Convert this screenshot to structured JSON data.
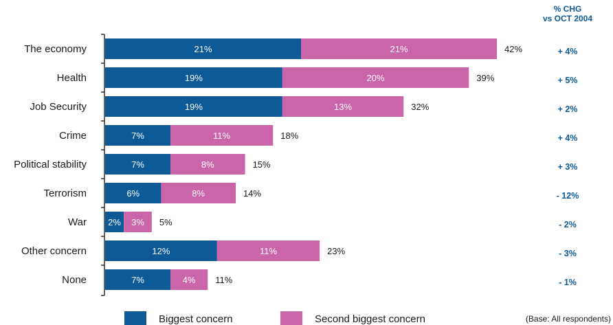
{
  "chart_data": {
    "type": "bar",
    "orientation": "horizontal",
    "stacked": true,
    "categories": [
      "The economy",
      "Health",
      "Job Security",
      "Crime",
      "Political stability",
      "Terrorism",
      "War",
      "Other concern",
      "None"
    ],
    "series": [
      {
        "name": "Biggest concern",
        "color": "#0d5a96",
        "values": [
          21,
          19,
          19,
          7,
          7,
          6,
          2,
          12,
          7
        ],
        "labels": [
          "21%",
          "19%",
          "19%",
          "7%",
          "7%",
          "6%",
          "2%",
          "12%",
          "7%"
        ]
      },
      {
        "name": "Second biggest concern",
        "color": "#c965a8",
        "values": [
          21,
          20,
          13,
          11,
          8,
          8,
          3,
          11,
          4
        ],
        "labels": [
          "21%",
          "20%",
          "13%",
          "11%",
          "8%",
          "8%",
          "3%",
          "11%",
          "4%"
        ]
      }
    ],
    "totals": [
      42,
      39,
      32,
      18,
      15,
      14,
      5,
      23,
      11
    ],
    "total_labels": [
      "42%",
      "39%",
      "32%",
      "18%",
      "15%",
      "14%",
      "5%",
      "23%",
      "11%"
    ],
    "change_header": [
      "% CHG",
      "vs OCT 2004"
    ],
    "change_values": [
      "+ 4%",
      "+ 5%",
      "+ 2%",
      "+ 4%",
      "+ 3%",
      "- 12%",
      "- 2%",
      "- 3%",
      "- 1%"
    ],
    "change_color": "#0d5a96",
    "xlim": [
      0,
      42
    ],
    "legend": {
      "position": "bottom"
    },
    "note": "(Base: All respondents)",
    "grid": false
  }
}
